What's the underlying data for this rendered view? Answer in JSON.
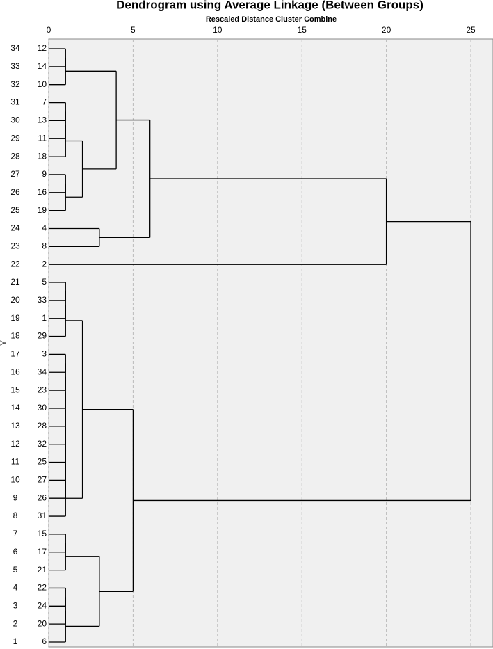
{
  "chart_data": {
    "type": "dendrogram",
    "title": "Dendrogram using Average Linkage (Between Groups)",
    "x_label": "Rescaled Distance Cluster Combine",
    "y_label": "Y",
    "xlim": [
      0,
      25
    ],
    "xticks": [
      0,
      5,
      10,
      15,
      20,
      25
    ],
    "grid": true,
    "row_labels": [
      34,
      33,
      32,
      31,
      30,
      29,
      28,
      27,
      26,
      25,
      24,
      23,
      22,
      21,
      20,
      19,
      18,
      17,
      16,
      15,
      14,
      13,
      12,
      11,
      10,
      9,
      8,
      7,
      6,
      5,
      4,
      3,
      2,
      1
    ],
    "leaves": [
      12,
      14,
      10,
      7,
      13,
      11,
      18,
      9,
      16,
      19,
      4,
      8,
      2,
      5,
      33,
      1,
      29,
      3,
      34,
      23,
      30,
      28,
      32,
      25,
      27,
      26,
      31,
      15,
      17,
      21,
      22,
      24,
      20,
      6
    ],
    "merges": [
      {
        "children": [
          0,
          1
        ],
        "height": 1
      },
      {
        "children": [
          34,
          2
        ],
        "height": 1
      },
      {
        "children": [
          3,
          4
        ],
        "height": 1
      },
      {
        "children": [
          36,
          5
        ],
        "height": 1
      },
      {
        "children": [
          37,
          6
        ],
        "height": 1
      },
      {
        "children": [
          7,
          8
        ],
        "height": 1
      },
      {
        "children": [
          39,
          9
        ],
        "height": 1
      },
      {
        "children": [
          38,
          40
        ],
        "height": 2
      },
      {
        "children": [
          35,
          41
        ],
        "height": 4
      },
      {
        "children": [
          10,
          11
        ],
        "height": 3
      },
      {
        "children": [
          42,
          43
        ],
        "height": 6
      },
      {
        "children": [
          44,
          12
        ],
        "height": 20
      },
      {
        "children": [
          13,
          14
        ],
        "height": 1
      },
      {
        "children": [
          46,
          15
        ],
        "height": 1
      },
      {
        "children": [
          47,
          16
        ],
        "height": 1
      },
      {
        "children": [
          17,
          18
        ],
        "height": 1
      },
      {
        "children": [
          49,
          19
        ],
        "height": 1
      },
      {
        "children": [
          50,
          20
        ],
        "height": 1
      },
      {
        "children": [
          51,
          21
        ],
        "height": 1
      },
      {
        "children": [
          52,
          22
        ],
        "height": 1
      },
      {
        "children": [
          53,
          23
        ],
        "height": 1
      },
      {
        "children": [
          54,
          24
        ],
        "height": 1
      },
      {
        "children": [
          55,
          25
        ],
        "height": 1
      },
      {
        "children": [
          56,
          26
        ],
        "height": 1
      },
      {
        "children": [
          48,
          57
        ],
        "height": 2
      },
      {
        "children": [
          27,
          28
        ],
        "height": 1
      },
      {
        "children": [
          59,
          29
        ],
        "height": 1
      },
      {
        "children": [
          30,
          31
        ],
        "height": 1
      },
      {
        "children": [
          61,
          32
        ],
        "height": 1
      },
      {
        "children": [
          62,
          33
        ],
        "height": 1
      },
      {
        "children": [
          60,
          63
        ],
        "height": 3
      },
      {
        "children": [
          58,
          64
        ],
        "height": 5
      },
      {
        "children": [
          45,
          65
        ],
        "height": 25
      }
    ]
  }
}
